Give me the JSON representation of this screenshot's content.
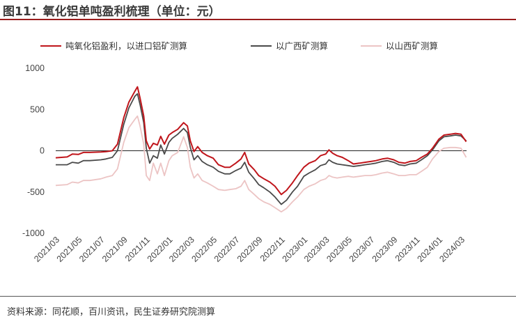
{
  "header": {
    "title": "图11：氧化铝单吨盈利梳理（单位：元）"
  },
  "footer": {
    "source": "资料来源：同花顺，百川资讯，民生证券研究院测算"
  },
  "chart_data": {
    "type": "line",
    "ylim": [
      -1000,
      1000
    ],
    "yticks": [
      -1000,
      -500,
      0,
      500,
      1000
    ],
    "grid": false,
    "legend_position": "top",
    "x_range": [
      "2021-03",
      "2024-03"
    ],
    "xticks": [
      "2021/03",
      "2021/05",
      "2021/07",
      "2021/09",
      "2021/11",
      "2022/01",
      "2022/03",
      "2022/05",
      "2022/07",
      "2022/09",
      "2022/11",
      "2023/01",
      "2023/03",
      "2023/05",
      "2023/07",
      "2023/09",
      "2023/11",
      "2024/01",
      "2024/03"
    ],
    "series": [
      {
        "name": "吨氧化铝盈利，以进口铝矿测算",
        "color": "#c0151b",
        "points": [
          [
            "2021-03-01",
            -85
          ],
          [
            "2021-04-01",
            -75
          ],
          [
            "2021-04-15",
            -40
          ],
          [
            "2021-05-01",
            -45
          ],
          [
            "2021-05-15",
            -20
          ],
          [
            "2021-06-01",
            -20
          ],
          [
            "2021-07-01",
            -15
          ],
          [
            "2021-07-15",
            -10
          ],
          [
            "2021-08-01",
            0
          ],
          [
            "2021-08-15",
            80
          ],
          [
            "2021-09-01",
            400
          ],
          [
            "2021-09-15",
            590
          ],
          [
            "2021-10-01",
            720
          ],
          [
            "2021-10-08",
            775
          ],
          [
            "2021-10-15",
            640
          ],
          [
            "2021-10-25",
            420
          ],
          [
            "2021-11-01",
            120
          ],
          [
            "2021-11-10",
            20
          ],
          [
            "2021-11-20",
            90
          ],
          [
            "2021-12-01",
            70
          ],
          [
            "2021-12-10",
            175
          ],
          [
            "2021-12-20",
            80
          ],
          [
            "2022-01-01",
            190
          ],
          [
            "2022-01-10",
            220
          ],
          [
            "2022-01-25",
            260
          ],
          [
            "2022-02-10",
            340
          ],
          [
            "2022-02-20",
            300
          ],
          [
            "2022-02-28",
            120
          ],
          [
            "2022-03-10",
            -10
          ],
          [
            "2022-03-20",
            50
          ],
          [
            "2022-04-01",
            -20
          ],
          [
            "2022-04-15",
            -60
          ],
          [
            "2022-05-01",
            -90
          ],
          [
            "2022-05-15",
            -170
          ],
          [
            "2022-06-01",
            -200
          ],
          [
            "2022-06-15",
            -200
          ],
          [
            "2022-07-01",
            -150
          ],
          [
            "2022-07-15",
            -100
          ],
          [
            "2022-07-25",
            -20
          ],
          [
            "2022-08-05",
            -160
          ],
          [
            "2022-08-20",
            -230
          ],
          [
            "2022-09-01",
            -300
          ],
          [
            "2022-09-15",
            -340
          ],
          [
            "2022-10-01",
            -380
          ],
          [
            "2022-10-15",
            -430
          ],
          [
            "2022-11-01",
            -530
          ],
          [
            "2022-11-15",
            -480
          ],
          [
            "2022-12-01",
            -390
          ],
          [
            "2022-12-15",
            -300
          ],
          [
            "2023-01-01",
            -200
          ],
          [
            "2023-01-15",
            -150
          ],
          [
            "2023-02-01",
            -120
          ],
          [
            "2023-02-15",
            -60
          ],
          [
            "2023-03-01",
            -40
          ],
          [
            "2023-03-10",
            10
          ],
          [
            "2023-03-20",
            -30
          ],
          [
            "2023-04-01",
            -60
          ],
          [
            "2023-04-15",
            -80
          ],
          [
            "2023-05-01",
            -120
          ],
          [
            "2023-05-15",
            -160
          ],
          [
            "2023-06-01",
            -150
          ],
          [
            "2023-06-15",
            -140
          ],
          [
            "2023-07-01",
            -130
          ],
          [
            "2023-07-15",
            -120
          ],
          [
            "2023-08-01",
            -100
          ],
          [
            "2023-08-15",
            -90
          ],
          [
            "2023-09-01",
            -110
          ],
          [
            "2023-09-15",
            -140
          ],
          [
            "2023-10-01",
            -150
          ],
          [
            "2023-10-15",
            -130
          ],
          [
            "2023-11-01",
            -120
          ],
          [
            "2023-11-15",
            -80
          ],
          [
            "2023-12-01",
            -40
          ],
          [
            "2023-12-15",
            30
          ],
          [
            "2024-01-01",
            140
          ],
          [
            "2024-01-15",
            190
          ],
          [
            "2024-02-01",
            200
          ],
          [
            "2024-02-15",
            210
          ],
          [
            "2024-03-01",
            200
          ],
          [
            "2024-03-15",
            110
          ]
        ]
      },
      {
        "name": "以广西矿测算",
        "color": "#4a4a4a",
        "points": [
          [
            "2021-03-01",
            -170
          ],
          [
            "2021-04-01",
            -170
          ],
          [
            "2021-04-15",
            -140
          ],
          [
            "2021-05-01",
            -150
          ],
          [
            "2021-05-15",
            -120
          ],
          [
            "2021-06-01",
            -120
          ],
          [
            "2021-07-01",
            -110
          ],
          [
            "2021-07-15",
            -100
          ],
          [
            "2021-08-01",
            -80
          ],
          [
            "2021-08-15",
            0
          ],
          [
            "2021-09-01",
            320
          ],
          [
            "2021-09-15",
            520
          ],
          [
            "2021-10-01",
            660
          ],
          [
            "2021-10-08",
            690
          ],
          [
            "2021-10-15",
            560
          ],
          [
            "2021-10-25",
            340
          ],
          [
            "2021-11-01",
            30
          ],
          [
            "2021-11-10",
            -150
          ],
          [
            "2021-11-20",
            -60
          ],
          [
            "2021-12-01",
            -90
          ],
          [
            "2021-12-10",
            70
          ],
          [
            "2021-12-20",
            -40
          ],
          [
            "2022-01-01",
            100
          ],
          [
            "2022-01-10",
            150
          ],
          [
            "2022-01-25",
            200
          ],
          [
            "2022-02-10",
            270
          ],
          [
            "2022-02-20",
            220
          ],
          [
            "2022-02-28",
            40
          ],
          [
            "2022-03-10",
            -110
          ],
          [
            "2022-03-20",
            -60
          ],
          [
            "2022-04-01",
            -130
          ],
          [
            "2022-04-15",
            -170
          ],
          [
            "2022-05-01",
            -200
          ],
          [
            "2022-05-15",
            -250
          ],
          [
            "2022-06-01",
            -280
          ],
          [
            "2022-06-15",
            -280
          ],
          [
            "2022-07-01",
            -240
          ],
          [
            "2022-07-15",
            -210
          ],
          [
            "2022-07-25",
            -140
          ],
          [
            "2022-08-05",
            -260
          ],
          [
            "2022-08-20",
            -340
          ],
          [
            "2022-09-01",
            -410
          ],
          [
            "2022-09-15",
            -450
          ],
          [
            "2022-10-01",
            -500
          ],
          [
            "2022-10-15",
            -560
          ],
          [
            "2022-11-01",
            -650
          ],
          [
            "2022-11-15",
            -600
          ],
          [
            "2022-12-01",
            -500
          ],
          [
            "2022-12-15",
            -430
          ],
          [
            "2023-01-01",
            -310
          ],
          [
            "2023-01-15",
            -270
          ],
          [
            "2023-02-01",
            -230
          ],
          [
            "2023-02-15",
            -180
          ],
          [
            "2023-03-01",
            -160
          ],
          [
            "2023-03-10",
            -110
          ],
          [
            "2023-03-20",
            -140
          ],
          [
            "2023-04-01",
            -160
          ],
          [
            "2023-04-15",
            -170
          ],
          [
            "2023-05-01",
            -180
          ],
          [
            "2023-05-15",
            -190
          ],
          [
            "2023-06-01",
            -180
          ],
          [
            "2023-06-15",
            -170
          ],
          [
            "2023-07-01",
            -160
          ],
          [
            "2023-07-15",
            -150
          ],
          [
            "2023-08-01",
            -130
          ],
          [
            "2023-08-15",
            -120
          ],
          [
            "2023-09-01",
            -140
          ],
          [
            "2023-09-15",
            -170
          ],
          [
            "2023-10-01",
            -180
          ],
          [
            "2023-10-15",
            -160
          ],
          [
            "2023-11-01",
            -150
          ],
          [
            "2023-11-15",
            -110
          ],
          [
            "2023-12-01",
            -60
          ],
          [
            "2023-12-15",
            10
          ],
          [
            "2024-01-01",
            120
          ],
          [
            "2024-01-15",
            170
          ],
          [
            "2024-02-01",
            180
          ],
          [
            "2024-02-15",
            190
          ],
          [
            "2024-03-01",
            180
          ],
          [
            "2024-03-15",
            120
          ]
        ]
      },
      {
        "name": "以山西矿测算",
        "color": "#ecc4c4",
        "points": [
          [
            "2021-03-01",
            -420
          ],
          [
            "2021-04-01",
            -410
          ],
          [
            "2021-04-15",
            -380
          ],
          [
            "2021-05-01",
            -390
          ],
          [
            "2021-05-15",
            -360
          ],
          [
            "2021-06-01",
            -360
          ],
          [
            "2021-07-01",
            -340
          ],
          [
            "2021-07-15",
            -320
          ],
          [
            "2021-08-01",
            -300
          ],
          [
            "2021-08-15",
            -220
          ],
          [
            "2021-09-01",
            100
          ],
          [
            "2021-09-15",
            280
          ],
          [
            "2021-10-01",
            380
          ],
          [
            "2021-10-08",
            420
          ],
          [
            "2021-10-15",
            300
          ],
          [
            "2021-10-25",
            80
          ],
          [
            "2021-11-01",
            -300
          ],
          [
            "2021-11-10",
            -360
          ],
          [
            "2021-11-20",
            -150
          ],
          [
            "2021-12-01",
            -280
          ],
          [
            "2021-12-10",
            -150
          ],
          [
            "2021-12-20",
            -300
          ],
          [
            "2022-01-01",
            -120
          ],
          [
            "2022-01-10",
            -60
          ],
          [
            "2022-01-25",
            -20
          ],
          [
            "2022-02-10",
            170
          ],
          [
            "2022-02-20",
            40
          ],
          [
            "2022-02-28",
            -200
          ],
          [
            "2022-03-10",
            -330
          ],
          [
            "2022-03-20",
            -280
          ],
          [
            "2022-04-01",
            -360
          ],
          [
            "2022-04-15",
            -390
          ],
          [
            "2022-05-01",
            -430
          ],
          [
            "2022-05-15",
            -470
          ],
          [
            "2022-06-01",
            -480
          ],
          [
            "2022-06-15",
            -470
          ],
          [
            "2022-07-01",
            -460
          ],
          [
            "2022-07-15",
            -430
          ],
          [
            "2022-07-25",
            -360
          ],
          [
            "2022-08-05",
            -470
          ],
          [
            "2022-08-20",
            -530
          ],
          [
            "2022-09-01",
            -580
          ],
          [
            "2022-09-15",
            -620
          ],
          [
            "2022-10-01",
            -650
          ],
          [
            "2022-10-15",
            -690
          ],
          [
            "2022-11-01",
            -740
          ],
          [
            "2022-11-15",
            -700
          ],
          [
            "2022-12-01",
            -620
          ],
          [
            "2022-12-15",
            -560
          ],
          [
            "2023-01-01",
            -470
          ],
          [
            "2023-01-15",
            -430
          ],
          [
            "2023-02-01",
            -400
          ],
          [
            "2023-02-15",
            -360
          ],
          [
            "2023-03-01",
            -340
          ],
          [
            "2023-03-10",
            -300
          ],
          [
            "2023-03-20",
            -320
          ],
          [
            "2023-04-01",
            -330
          ],
          [
            "2023-04-15",
            -320
          ],
          [
            "2023-05-01",
            -310
          ],
          [
            "2023-05-15",
            -320
          ],
          [
            "2023-06-01",
            -310
          ],
          [
            "2023-06-15",
            -300
          ],
          [
            "2023-07-01",
            -300
          ],
          [
            "2023-07-15",
            -290
          ],
          [
            "2023-08-01",
            -270
          ],
          [
            "2023-08-15",
            -260
          ],
          [
            "2023-09-01",
            -280
          ],
          [
            "2023-09-15",
            -300
          ],
          [
            "2023-10-01",
            -300
          ],
          [
            "2023-10-15",
            -290
          ],
          [
            "2023-11-01",
            -290
          ],
          [
            "2023-11-15",
            -250
          ],
          [
            "2023-12-01",
            -200
          ],
          [
            "2023-12-15",
            -100
          ],
          [
            "2024-01-01",
            -10
          ],
          [
            "2024-01-15",
            30
          ],
          [
            "2024-02-01",
            40
          ],
          [
            "2024-02-15",
            40
          ],
          [
            "2024-03-01",
            30
          ],
          [
            "2024-03-15",
            -80
          ]
        ]
      }
    ]
  }
}
